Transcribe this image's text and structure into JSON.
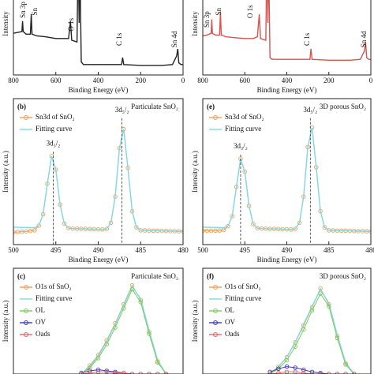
{
  "chart_data": [
    {
      "type": "line",
      "ylabel": "Intensity",
      "xlabel": "Binding Energy (eV)",
      "xlim": [
        800,
        0
      ],
      "xticks": [
        800,
        600,
        400,
        200,
        0
      ],
      "ylim": [
        0,
        100
      ],
      "annotation_rotation": -90,
      "x": [
        800,
        780,
        760,
        757,
        754,
        740,
        720,
        716,
        712,
        690,
        650,
        600,
        560,
        540,
        531,
        525,
        500,
        495,
        490,
        487,
        480,
        470,
        400,
        300,
        290,
        285,
        280,
        200,
        100,
        50,
        30,
        25,
        20,
        10,
        0
      ],
      "series": [
        {
          "color": "#222222",
          "values": [
            48,
            49,
            50,
            62,
            50,
            47,
            47,
            70,
            47,
            45,
            44,
            42,
            42,
            42,
            62,
            40,
            38,
            140,
            60,
            140,
            15,
            12,
            12,
            12,
            12,
            20,
            12,
            11,
            11,
            12,
            22,
            30,
            14,
            12,
            12
          ]
        }
      ],
      "annotations": [
        {
          "text": "Sn 3p",
          "x": 752,
          "y": 75
        },
        {
          "text": "Sn",
          "x": 696,
          "y": 73
        },
        {
          "text": "O 1s",
          "x": 525,
          "y": 58
        },
        {
          "text": "C 1s",
          "x": 298,
          "y": 41
        },
        {
          "text": "Sn 4d",
          "x": 37,
          "y": 41
        }
      ]
    },
    {
      "type": "line",
      "ylabel": "Intensity",
      "xlabel": "Binding Energy (eV)",
      "xlim": [
        800,
        0
      ],
      "xticks": [
        800,
        600,
        400,
        200,
        0
      ],
      "ylim": [
        0,
        100
      ],
      "annotation_rotation": -90,
      "x": [
        800,
        780,
        760,
        757,
        754,
        740,
        720,
        716,
        712,
        690,
        650,
        600,
        560,
        540,
        531,
        525,
        500,
        495,
        490,
        487,
        480,
        470,
        400,
        300,
        290,
        285,
        280,
        200,
        100,
        50,
        30,
        25,
        20,
        10,
        0
      ],
      "series": [
        {
          "color": "#d9534f",
          "values": [
            45,
            46,
            48,
            64,
            48,
            46,
            46,
            73,
            46,
            44,
            43,
            42,
            42,
            44,
            70,
            42,
            40,
            140,
            60,
            140,
            20,
            18,
            18,
            18,
            18,
            30,
            18,
            17,
            17,
            18,
            28,
            38,
            20,
            18,
            18
          ]
        }
      ],
      "annotations": [
        {
          "text": "Sn 3p",
          "x": 777,
          "y": 64
        },
        {
          "text": "Sn",
          "x": 721,
          "y": 73
        },
        {
          "text": "O 1s",
          "x": 571,
          "y": 73
        },
        {
          "text": "C 1s",
          "x": 300,
          "y": 41
        },
        {
          "text": "Sn 4d",
          "x": 30,
          "y": 41
        }
      ]
    },
    {
      "type": "line",
      "label": "(b)",
      "title": "Particulate SnO₂",
      "ylabel": "Intensity (a.u.)",
      "xlabel": "Binding Energy (eV)",
      "xlim": [
        500,
        480
      ],
      "xticks": [
        500,
        495,
        490,
        485,
        480
      ],
      "ylim": [
        0,
        100
      ],
      "legend": "upper left",
      "droplines": true,
      "x": [
        500,
        499.5,
        499,
        498.5,
        498,
        497.5,
        497,
        496.5,
        496,
        495.5,
        495,
        494.5,
        494,
        493.5,
        493,
        492.5,
        492,
        491.5,
        491,
        490.5,
        490,
        489.5,
        489,
        488.5,
        488,
        487.5,
        487,
        486.5,
        486,
        485.5,
        485,
        484.5,
        484,
        483.5,
        483,
        482.5,
        482,
        481.5,
        481,
        480.5,
        480
      ],
      "series": [
        {
          "name": "Sn3d of SnO₂",
          "color": "#f0a05a",
          "marker": "circle",
          "values": [
            8.5,
            8.6,
            8.8,
            9.0,
            9.3,
            9.8,
            13.0,
            20.8,
            41.7,
            60.6,
            51.3,
            27.4,
            14.4,
            11.3,
            11.0,
            10.9,
            10.8,
            10.8,
            10.7,
            10.6,
            10.5,
            10.4,
            10.8,
            14.9,
            32.9,
            66.1,
            79.1,
            52.5,
            22.9,
            11.8,
            9.8,
            9.7,
            9.6,
            9.5,
            9.5,
            9.4,
            9.3,
            9.2,
            9.2,
            9.1,
            9.0
          ]
        },
        {
          "name": "Fitting curve",
          "color": "#7fd8e8",
          "values": [
            12,
            11.9,
            11.8,
            11.8,
            11.7,
            11.6,
            13.0,
            20.8,
            41.7,
            60.6,
            51.3,
            27.4,
            14.4,
            11.3,
            11.0,
            10.9,
            10.8,
            10.8,
            10.7,
            10.6,
            10.5,
            10.4,
            10.8,
            14.9,
            32.9,
            66.1,
            79.1,
            52.5,
            22.9,
            11.8,
            9.8,
            9.7,
            9.6,
            9.5,
            9.5,
            9.4,
            9.3,
            9.2,
            9.2,
            9.1,
            9.0
          ]
        }
      ],
      "annotations": [
        {
          "text": "3d₃/₂",
          "x": 495.3,
          "y": 69
        },
        {
          "text": "3d₅/₂",
          "x": 487.2,
          "y": 92
        }
      ]
    },
    {
      "type": "line",
      "label": "(e)",
      "title": "3D porous SnO₂",
      "ylabel": "Intensity (a.u.)",
      "xlabel": "Binding Energy (eV)",
      "xlim": [
        500,
        480
      ],
      "xticks": [
        500,
        495,
        490,
        485,
        480
      ],
      "ylim": [
        0,
        100
      ],
      "legend": "upper left",
      "droplines": true,
      "x": [
        500,
        499.5,
        499,
        498.5,
        498,
        497.5,
        497,
        496.5,
        496,
        495.5,
        495,
        494.5,
        494,
        493.5,
        493,
        492.5,
        492,
        491.5,
        491,
        490.5,
        490,
        489.5,
        489,
        488.5,
        488,
        487.5,
        487,
        486.5,
        486,
        485.5,
        485,
        484.5,
        484,
        483.5,
        483,
        482.5,
        482,
        481.5,
        481,
        480.5,
        480
      ],
      "series": [
        {
          "name": "Sn3d of SnO₂",
          "color": "#f0a05a",
          "marker": "circle",
          "values": [
            9.5,
            9.4,
            9.4,
            9.5,
            9.6,
            10,
            12.6,
            19.5,
            39.5,
            58.7,
            50.0,
            26.5,
            14.0,
            11.3,
            11.0,
            10.9,
            10.8,
            10.8,
            10.7,
            10.6,
            10.5,
            10.4,
            10.8,
            14.9,
            32.9,
            66.8,
            80.2,
            53.0,
            22.9,
            11.8,
            9.8,
            9.7,
            9.6,
            9.5,
            9.5,
            9.4,
            9.3,
            9.2,
            9.2,
            9.1,
            9.0
          ]
        },
        {
          "name": "Fitting curve",
          "color": "#7fd8e8",
          "values": [
            12,
            11.9,
            11.8,
            11.8,
            11.7,
            11.6,
            12.6,
            19.5,
            39.5,
            58.7,
            50.0,
            26.5,
            14.0,
            11.3,
            11.0,
            10.9,
            10.8,
            10.8,
            10.7,
            10.6,
            10.5,
            10.4,
            10.8,
            14.9,
            32.9,
            66.8,
            80.2,
            53.0,
            22.9,
            11.8,
            9.8,
            9.7,
            9.6,
            9.5,
            9.5,
            9.4,
            9.3,
            9.2,
            9.2,
            9.1,
            9.0
          ]
        }
      ],
      "annotations": [
        {
          "text": "3d₃/₂",
          "x": 495.5,
          "y": 67
        },
        {
          "text": "3d₅/₂",
          "x": 487.2,
          "y": 92
        }
      ]
    },
    {
      "type": "line",
      "label": "(c)",
      "title": "Particulate SnO₂",
      "ylabel": "Intensity (a.u.)",
      "xlim": [
        536,
        526
      ],
      "ylim": [
        0,
        100
      ],
      "legend": "upper left",
      "x": [
        532,
        531.5,
        531,
        530.5,
        530,
        529.5,
        529,
        528.5,
        528,
        527.5,
        527
      ],
      "series": [
        {
          "name": "O1s of SnO₂",
          "color": "#f0a05a",
          "marker": "circle",
          "values": [
            0,
            8,
            18,
            32,
            48,
            66,
            84,
            70,
            40,
            12,
            0
          ]
        },
        {
          "name": "Fitting curve",
          "color": "#7fd8e8",
          "values": [
            0,
            7,
            17,
            31,
            47,
            65,
            83,
            71,
            41,
            13,
            0
          ]
        },
        {
          "name": "OL",
          "color": "#7ccc5a",
          "marker": "circle",
          "values": [
            0,
            6,
            15,
            28,
            44,
            62,
            80,
            68,
            38,
            11,
            0
          ]
        },
        {
          "name": "OV",
          "color": "#3b3bb8",
          "marker": "circle",
          "values": [
            1,
            3,
            4,
            3,
            2,
            1,
            0,
            0,
            0,
            0,
            0
          ]
        },
        {
          "name": "Oads",
          "color": "#e06a6a",
          "marker": "circle",
          "values": [
            0,
            1,
            2,
            2,
            1,
            1,
            0,
            0,
            0,
            0,
            0
          ]
        }
      ]
    },
    {
      "type": "line",
      "label": "(f)",
      "title": "3D porous SnO₂",
      "ylabel": "Intensity (a.u.)",
      "xlim": [
        536,
        526
      ],
      "ylim": [
        0,
        100
      ],
      "legend": "upper left",
      "x": [
        532,
        531.5,
        531,
        530.5,
        530,
        529.5,
        529,
        528.5,
        528,
        527.5,
        527
      ],
      "series": [
        {
          "name": "O1s of SnO₂",
          "color": "#f0a05a",
          "marker": "circle",
          "values": [
            0,
            7,
            16,
            30,
            46,
            63,
            81,
            66,
            36,
            10,
            0
          ]
        },
        {
          "name": "Fitting curve",
          "color": "#7fd8e8",
          "values": [
            0,
            7,
            16,
            30,
            47,
            64,
            80,
            67,
            37,
            11,
            0
          ]
        },
        {
          "name": "OL",
          "color": "#7ccc5a",
          "marker": "circle",
          "values": [
            0,
            5,
            13,
            26,
            42,
            60,
            76,
            64,
            34,
            9,
            0
          ]
        },
        {
          "name": "OV",
          "color": "#3b3bb8",
          "marker": "circle",
          "values": [
            2,
            5,
            7,
            6,
            4,
            2,
            1,
            0,
            0,
            0,
            0
          ]
        },
        {
          "name": "Oads",
          "color": "#e06a6a",
          "marker": "circle",
          "values": [
            0,
            1,
            2,
            2,
            1,
            0,
            0,
            0,
            0,
            0,
            0
          ]
        }
      ]
    }
  ]
}
